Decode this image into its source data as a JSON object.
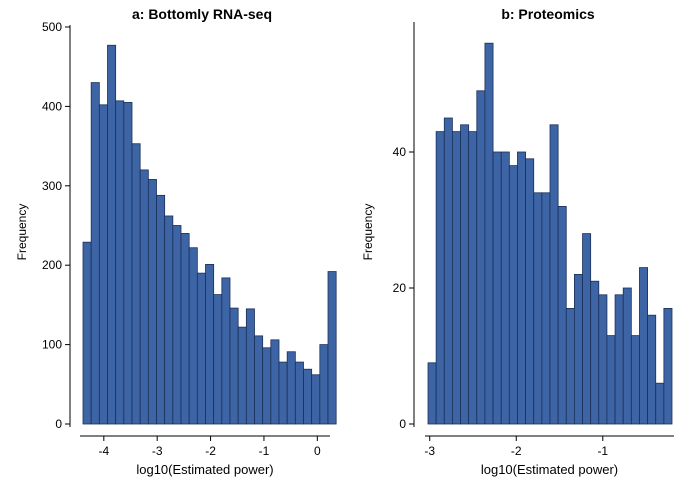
{
  "style": {
    "bar_fill": "#3d65a5",
    "bar_stroke": "#1c2f57",
    "axis_color": "#000000",
    "background": "#ffffff"
  },
  "chart_data": [
    {
      "type": "bar",
      "title": "a: Bottomly RNA-seq",
      "xlabel": "log10(Estimated power)",
      "ylabel": "Frequency",
      "xlim": [
        -4.39,
        0.2
      ],
      "ylim": [
        0,
        500
      ],
      "bin_start": -4.39,
      "bin_width": 0.153,
      "values": [
        229,
        430,
        402,
        477,
        407,
        405,
        353,
        320,
        308,
        288,
        262,
        250,
        240,
        222,
        190,
        201,
        163,
        184,
        146,
        122,
        145,
        111,
        96,
        106,
        78,
        91,
        78,
        69,
        62,
        100,
        192
      ],
      "xticks": [
        -4,
        -3,
        -2,
        -1,
        0
      ],
      "yticks": [
        0,
        100,
        200,
        300,
        400,
        500
      ]
    },
    {
      "type": "bar",
      "title": "b: Proteomics",
      "xlabel": "log10(Estimated power)",
      "ylabel": "Frequency",
      "xlim": [
        -3.02,
        -0.2
      ],
      "ylim": [
        0,
        60
      ],
      "bin_start": -3.02,
      "bin_width": 0.094,
      "values": [
        9,
        43,
        45,
        43,
        44,
        43,
        49,
        56,
        40,
        40,
        38,
        40,
        39,
        34,
        34,
        44,
        32,
        17,
        22,
        28,
        21,
        19,
        13,
        19,
        20,
        13,
        23,
        16,
        6,
        17
      ],
      "xticks": [
        -3,
        -2,
        -1
      ],
      "yticks": [
        0,
        20,
        40
      ]
    }
  ]
}
